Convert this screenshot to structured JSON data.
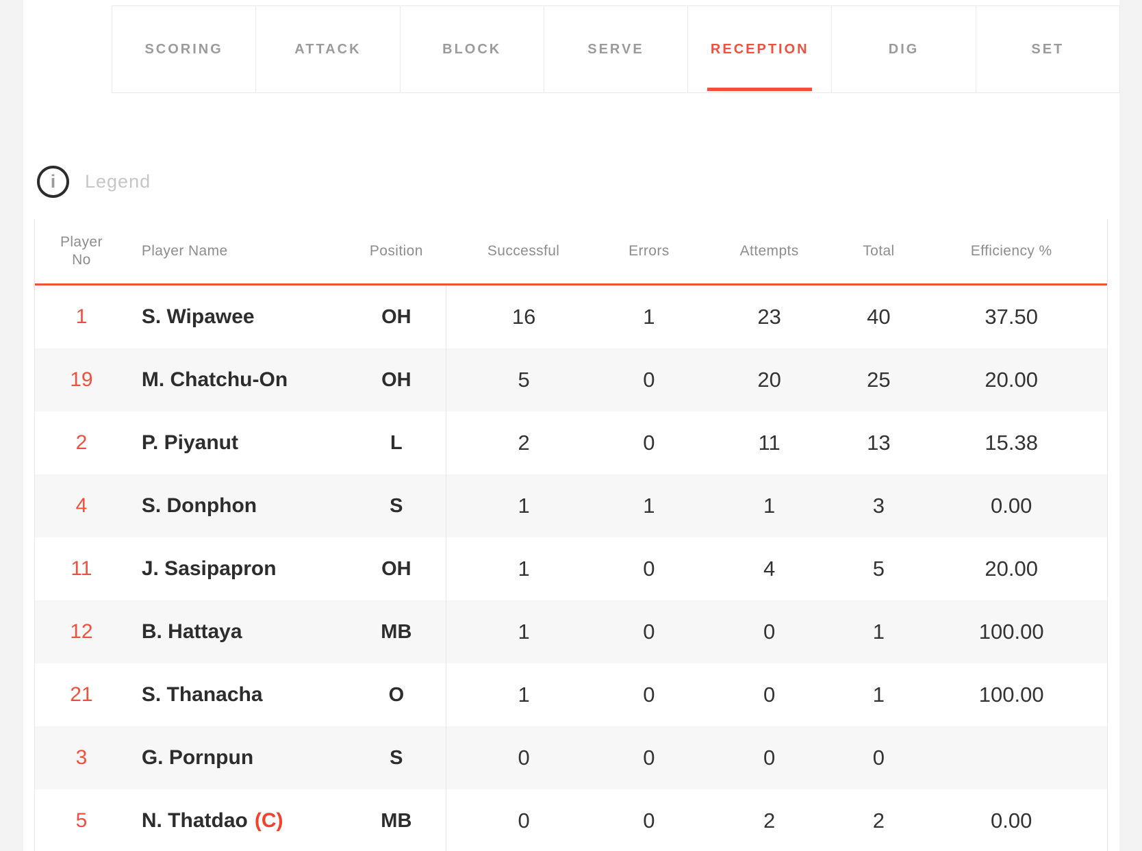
{
  "tabs": {
    "items": [
      {
        "label": "SCORING"
      },
      {
        "label": "ATTACK"
      },
      {
        "label": "BLOCK"
      },
      {
        "label": "SERVE"
      },
      {
        "label": "RECEPTION"
      },
      {
        "label": "DIG"
      },
      {
        "label": "SET"
      }
    ],
    "active_label": "RECEPTION"
  },
  "legend": {
    "label": "Legend",
    "icon": "info-icon",
    "icon_glyph": "i"
  },
  "table": {
    "columns": {
      "no": "Player No",
      "name": "Player Name",
      "position": "Position",
      "successful": "Successful",
      "errors": "Errors",
      "attempts": "Attempts",
      "total": "Total",
      "efficiency": "Efficiency %"
    },
    "rows": [
      {
        "no": "1",
        "name": "S. Wipawee",
        "captain": "",
        "position": "OH",
        "successful": "16",
        "errors": "1",
        "attempts": "23",
        "total": "40",
        "efficiency": "37.50"
      },
      {
        "no": "19",
        "name": "M. Chatchu-On",
        "captain": "",
        "position": "OH",
        "successful": "5",
        "errors": "0",
        "attempts": "20",
        "total": "25",
        "efficiency": "20.00"
      },
      {
        "no": "2",
        "name": "P. Piyanut",
        "captain": "",
        "position": "L",
        "successful": "2",
        "errors": "0",
        "attempts": "11",
        "total": "13",
        "efficiency": "15.38"
      },
      {
        "no": "4",
        "name": "S. Donphon",
        "captain": "",
        "position": "S",
        "successful": "1",
        "errors": "1",
        "attempts": "1",
        "total": "3",
        "efficiency": "0.00"
      },
      {
        "no": "11",
        "name": "J. Sasipapron",
        "captain": "",
        "position": "OH",
        "successful": "1",
        "errors": "0",
        "attempts": "4",
        "total": "5",
        "efficiency": "20.00"
      },
      {
        "no": "12",
        "name": "B. Hattaya",
        "captain": "",
        "position": "MB",
        "successful": "1",
        "errors": "0",
        "attempts": "0",
        "total": "1",
        "efficiency": "100.00"
      },
      {
        "no": "21",
        "name": "S. Thanacha",
        "captain": "",
        "position": "O",
        "successful": "1",
        "errors": "0",
        "attempts": "0",
        "total": "1",
        "efficiency": "100.00"
      },
      {
        "no": "3",
        "name": "G. Pornpun",
        "captain": "",
        "position": "S",
        "successful": "0",
        "errors": "0",
        "attempts": "0",
        "total": "0",
        "efficiency": ""
      },
      {
        "no": "5",
        "name": "N. Thatdao",
        "captain": "(C)",
        "position": "MB",
        "successful": "0",
        "errors": "0",
        "attempts": "2",
        "total": "2",
        "efficiency": "0.00"
      }
    ]
  },
  "colors": {
    "accent": "#f0513e",
    "captain_mark": "#f5402c",
    "row_alt": "#f7f7f7",
    "gutter": "#f3f3f3",
    "tab_border": "#e9e9e9"
  }
}
